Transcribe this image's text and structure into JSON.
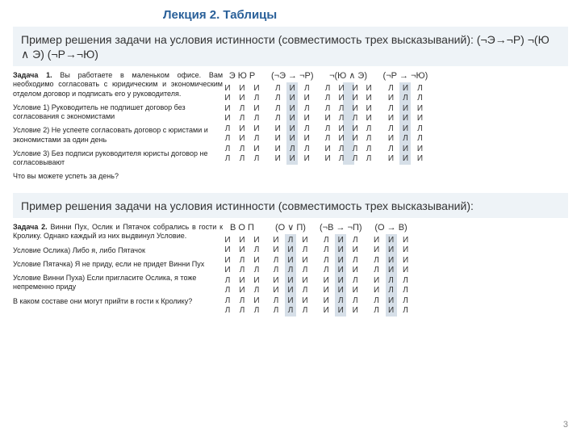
{
  "lecture_title": "Лекция 2. Таблицы",
  "page_number": "3",
  "block1": {
    "heading": "Пример решения задачи на условия истинности (совместимость трех высказываний): (¬Э→¬Р) ¬(Ю ∧ Э) (¬Р→¬Ю)",
    "prose": [
      {
        "bold": "Задача 1.",
        "text": " Вы работаете в маленьком офисе. Вам необходимо согласовать с юридическим и экономическим отделом договор и подписать его у руководителя."
      },
      {
        "text": "Условие 1) Руководитель не подпишет договор без согласования с экономистами"
      },
      {
        "text": "Условие 2) Не успеете согласовать договор с юристами и экономистами за один день"
      },
      {
        "text": "Условие 3) Без подписи руководителя юристы договор не согласовывают"
      },
      {
        "text": "Что вы можете успеть за день?"
      }
    ],
    "table_labels": [
      "Э  Ю  Р",
      "(¬Э → ¬Р)",
      "¬(Ю ∧ Э)",
      "(¬Р → ¬Ю)"
    ],
    "t1": [
      [
        "И",
        "И",
        "И"
      ],
      [
        "И",
        "И",
        "Л"
      ],
      [
        "И",
        "Л",
        "И"
      ],
      [
        "И",
        "Л",
        "Л"
      ],
      [
        "Л",
        "И",
        "И"
      ],
      [
        "Л",
        "И",
        "Л"
      ],
      [
        "Л",
        "Л",
        "И"
      ],
      [
        "Л",
        "Л",
        "Л"
      ]
    ],
    "t2": [
      [
        "Л",
        "И",
        "Л"
      ],
      [
        "Л",
        "И",
        "И"
      ],
      [
        "Л",
        "И",
        "Л"
      ],
      [
        "Л",
        "И",
        "И"
      ],
      [
        "И",
        "И",
        "Л"
      ],
      [
        "И",
        "И",
        "И"
      ],
      [
        "И",
        "Л",
        "Л"
      ],
      [
        "И",
        "И",
        "И"
      ]
    ],
    "t3": [
      [
        "Л",
        "И",
        "И",
        "И"
      ],
      [
        "Л",
        "И",
        "И",
        "И"
      ],
      [
        "Л",
        "Л",
        "И",
        "И"
      ],
      [
        "И",
        "Л",
        "Л",
        "И"
      ],
      [
        "Л",
        "И",
        "И",
        "Л"
      ],
      [
        "Л",
        "И",
        "И",
        "Л"
      ],
      [
        "И",
        "Л",
        "Л",
        "Л"
      ],
      [
        "И",
        "Л",
        "Л",
        "Л"
      ]
    ],
    "t4": [
      [
        "Л",
        "И",
        "Л"
      ],
      [
        "И",
        "Л",
        "Л"
      ],
      [
        "Л",
        "И",
        "И"
      ],
      [
        "И",
        "И",
        "И"
      ],
      [
        "Л",
        "И",
        "Л"
      ],
      [
        "И",
        "Л",
        "Л"
      ],
      [
        "Л",
        "И",
        "И"
      ],
      [
        "И",
        "И",
        "И"
      ]
    ]
  },
  "block2": {
    "heading": "Пример решения задачи на условия истинности (совместимость трех высказываний):",
    "prose": [
      {
        "bold": "Задача 2.",
        "text": " Винни Пух, Ослик и Пятачок собрались в гости к Кролику. Однако каждый из них выдвинул Условие."
      },
      {
        "text": "Условие Ослика) Либо я, либо Пятачок"
      },
      {
        "text": "Условие Пятачка) Я не приду, если не придет Винни Пух"
      },
      {
        "text": "Условие Винни Пуха) Если пригласите Ослика, я тоже непременно приду"
      },
      {
        "text": "В каком составе они могут прийти в гости к Кролику?"
      }
    ],
    "table_labels": [
      "В  О  П",
      "(О ∨ П)",
      "(¬В → ¬П)",
      "(О → В)"
    ],
    "t1": [
      [
        "И",
        "И",
        "И"
      ],
      [
        "И",
        "И",
        "Л"
      ],
      [
        "И",
        "Л",
        "И"
      ],
      [
        "И",
        "Л",
        "Л"
      ],
      [
        "Л",
        "И",
        "И"
      ],
      [
        "Л",
        "И",
        "Л"
      ],
      [
        "Л",
        "Л",
        "И"
      ],
      [
        "Л",
        "Л",
        "Л"
      ]
    ],
    "t2": [
      [
        "И",
        "Л",
        "И"
      ],
      [
        "И",
        "И",
        "Л"
      ],
      [
        "Л",
        "И",
        "И"
      ],
      [
        "Л",
        "Л",
        "Л"
      ],
      [
        "И",
        "И",
        "И"
      ],
      [
        "И",
        "И",
        "Л"
      ],
      [
        "Л",
        "И",
        "И"
      ],
      [
        "Л",
        "Л",
        "Л"
      ]
    ],
    "t3": [
      [
        "Л",
        "И",
        "Л"
      ],
      [
        "Л",
        "И",
        "И"
      ],
      [
        "Л",
        "И",
        "Л"
      ],
      [
        "Л",
        "И",
        "И"
      ],
      [
        "И",
        "И",
        "Л"
      ],
      [
        "И",
        "И",
        "И"
      ],
      [
        "И",
        "Л",
        "Л"
      ],
      [
        "И",
        "И",
        "И"
      ]
    ],
    "t4": [
      [
        "И",
        "И",
        "И"
      ],
      [
        "И",
        "И",
        "И"
      ],
      [
        "Л",
        "И",
        "И"
      ],
      [
        "Л",
        "И",
        "И"
      ],
      [
        "И",
        "Л",
        "Л"
      ],
      [
        "И",
        "Л",
        "Л"
      ],
      [
        "Л",
        "И",
        "Л"
      ],
      [
        "Л",
        "И",
        "Л"
      ]
    ]
  },
  "colors": {
    "accent": "#2a6099",
    "band": "#eef3f7",
    "hl": "#d6dfe8"
  }
}
